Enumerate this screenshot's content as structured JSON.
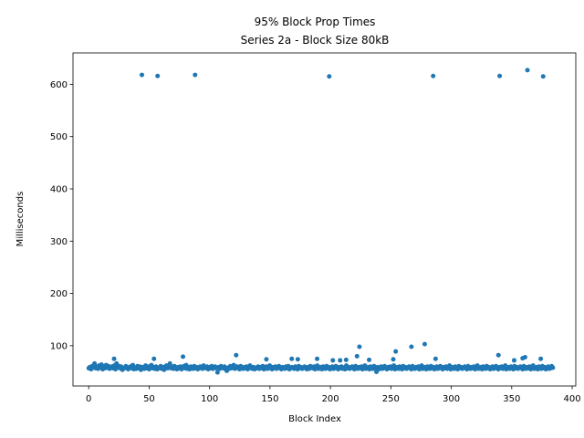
{
  "chart_data": {
    "type": "scatter",
    "title": "95% Block Prop Times",
    "subtitle": "Series 2a - Block Size 80kB",
    "xlabel": "Block Index",
    "ylabel": "Milliseconds",
    "xlim": [
      -13,
      403
    ],
    "ylim": [
      23,
      660
    ],
    "xticks": [
      0,
      50,
      100,
      150,
      200,
      250,
      300,
      350,
      400
    ],
    "yticks": [
      100,
      200,
      300,
      400,
      500,
      600
    ],
    "grid": false,
    "legend": "none",
    "marker_color": "#1f77b4",
    "outliers": [
      {
        "x": 44,
        "y": 618
      },
      {
        "x": 57,
        "y": 616
      },
      {
        "x": 88,
        "y": 618
      },
      {
        "x": 199,
        "y": 615
      },
      {
        "x": 285,
        "y": 616
      },
      {
        "x": 340,
        "y": 616
      },
      {
        "x": 363,
        "y": 627
      },
      {
        "x": 376,
        "y": 615
      }
    ],
    "spikes": [
      {
        "x": 21,
        "y": 75
      },
      {
        "x": 54,
        "y": 75
      },
      {
        "x": 78,
        "y": 79
      },
      {
        "x": 122,
        "y": 82
      },
      {
        "x": 147,
        "y": 74
      },
      {
        "x": 168,
        "y": 75
      },
      {
        "x": 173,
        "y": 74
      },
      {
        "x": 189,
        "y": 75
      },
      {
        "x": 202,
        "y": 72
      },
      {
        "x": 208,
        "y": 72
      },
      {
        "x": 213,
        "y": 73
      },
      {
        "x": 222,
        "y": 80
      },
      {
        "x": 224,
        "y": 98
      },
      {
        "x": 232,
        "y": 73
      },
      {
        "x": 252,
        "y": 74
      },
      {
        "x": 254,
        "y": 89
      },
      {
        "x": 267,
        "y": 98
      },
      {
        "x": 278,
        "y": 103
      },
      {
        "x": 287,
        "y": 75
      },
      {
        "x": 339,
        "y": 82
      },
      {
        "x": 352,
        "y": 72
      },
      {
        "x": 359,
        "y": 76
      },
      {
        "x": 361,
        "y": 78
      },
      {
        "x": 374,
        "y": 75
      }
    ],
    "baseline": {
      "x_start": 0,
      "x_end": 384,
      "y_values": [
        57,
        59,
        55,
        61,
        58,
        66,
        57,
        60,
        56,
        62,
        58,
        64,
        55,
        60,
        57,
        63,
        58,
        61,
        56,
        59,
        60,
        57,
        62,
        55,
        66,
        58,
        61,
        57,
        60,
        54,
        56,
        58,
        61,
        57,
        55,
        59,
        60,
        57,
        63,
        55,
        58,
        56,
        61,
        57,
        60,
        54,
        59,
        58,
        56,
        62,
        57,
        60,
        55,
        58,
        63,
        57,
        59,
        56,
        60,
        55,
        58,
        57,
        61,
        56,
        59,
        54,
        60,
        62,
        57,
        58,
        66,
        57,
        60,
        56,
        61,
        58,
        55,
        59,
        57,
        60,
        55,
        58,
        61,
        57,
        63,
        56,
        59,
        55,
        60,
        58,
        56,
        61,
        57,
        59,
        55,
        58,
        60,
        57,
        56,
        62,
        58,
        57,
        60,
        55,
        59,
        57,
        61,
        56,
        58,
        60,
        57,
        49,
        59,
        56,
        61,
        58,
        57,
        60,
        55,
        52,
        58,
        56,
        61,
        57,
        59,
        63,
        56,
        58,
        60,
        57,
        55,
        61,
        58,
        56,
        59,
        57,
        60,
        55,
        58,
        62,
        57,
        56,
        59,
        55,
        58,
        57,
        60,
        56,
        59,
        57,
        61,
        55,
        58,
        60,
        56,
        57,
        62,
        58,
        55,
        59,
        57,
        60,
        56,
        58,
        61,
        57,
        55,
        59,
        58,
        56,
        60,
        57,
        61,
        55,
        58,
        59,
        57,
        56,
        60,
        58,
        55,
        61,
        57,
        59,
        56,
        58,
        60,
        57,
        55,
        59,
        56,
        61,
        58,
        57,
        60,
        55,
        58,
        62,
        56,
        57,
        59,
        55,
        60,
        58,
        56,
        61,
        57,
        59,
        55,
        58,
        60,
        56,
        57,
        61,
        58,
        55,
        59,
        57,
        60,
        56,
        58,
        55,
        62,
        57,
        59,
        56,
        58,
        60,
        57,
        55,
        61,
        58,
        56,
        59,
        57,
        60,
        55,
        58,
        62,
        56,
        57,
        59,
        55,
        60,
        58,
        56,
        61,
        57,
        50,
        59,
        55,
        58,
        60,
        56,
        57,
        61,
        58,
        55,
        59,
        57,
        60,
        56,
        58,
        62,
        55,
        57,
        59,
        56,
        60,
        58,
        55,
        61,
        57,
        59,
        56,
        58,
        60,
        57,
        55,
        61,
        58,
        56,
        59,
        57,
        60,
        55,
        58,
        62,
        56,
        57,
        59,
        55,
        60,
        58,
        56,
        61,
        57,
        59,
        55,
        58,
        60,
        56,
        57,
        61,
        58,
        55,
        59,
        57,
        60,
        56,
        58,
        62,
        55,
        57,
        59,
        56,
        60,
        58,
        55,
        61,
        57,
        59,
        56,
        58,
        60,
        57,
        55,
        61,
        58,
        56,
        59,
        57,
        60,
        55,
        58,
        62,
        56,
        57,
        59,
        55,
        60,
        58,
        56,
        61,
        57,
        59,
        55,
        58,
        60,
        56,
        57,
        61,
        58,
        55,
        59,
        57,
        60,
        56,
        58,
        62,
        55,
        57,
        59,
        56,
        60,
        58,
        55,
        61,
        57,
        59,
        56,
        58,
        60,
        57,
        55,
        61,
        58,
        56,
        59,
        57,
        60,
        55,
        58,
        62,
        56,
        57,
        59,
        55,
        60,
        58,
        56,
        61,
        57,
        59,
        55,
        58,
        60,
        56,
        57,
        61,
        58
      ]
    }
  }
}
